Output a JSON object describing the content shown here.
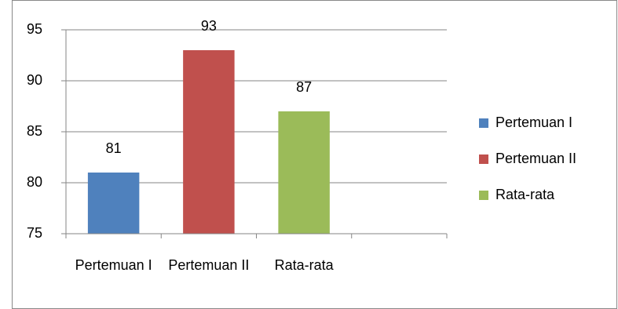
{
  "chart_data": {
    "type": "bar",
    "categories": [
      "Pertemuan I",
      "Pertemuan II",
      "Rata-rata",
      null
    ],
    "values": [
      81,
      93,
      87,
      null
    ],
    "colors": [
      "#4f81bd",
      "#c0504d",
      "#9bbb59",
      null
    ],
    "ylim": [
      75,
      95
    ],
    "yticks": [
      75,
      80,
      85,
      90,
      95
    ],
    "grid": true,
    "legend": "right"
  }
}
